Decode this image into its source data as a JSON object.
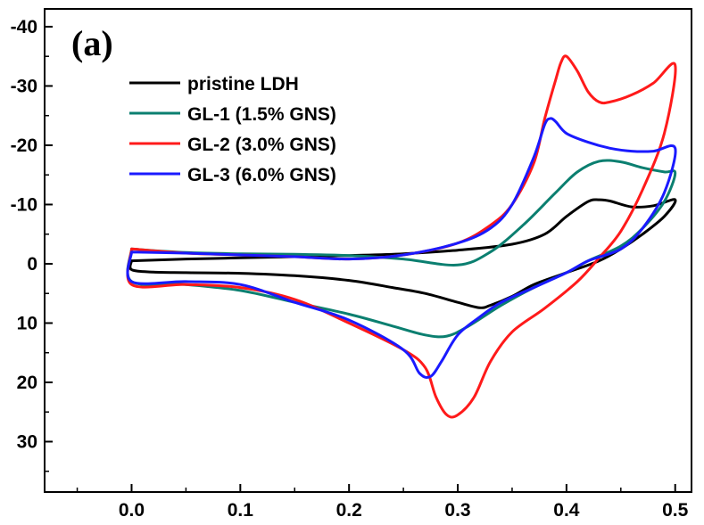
{
  "chart_data": {
    "type": "line",
    "panel_label": "(a)",
    "title": "",
    "xlabel": "",
    "ylabel": "",
    "xlim": [
      -0.08,
      0.515
    ],
    "ylim": [
      -43,
      38.5
    ],
    "y_inverted": true,
    "x_ticks": [
      0.0,
      0.1,
      0.2,
      0.3,
      0.4,
      0.5
    ],
    "x_tick_labels": [
      "0.0",
      "0.1",
      "0.2",
      "0.3",
      "0.4",
      "0.5"
    ],
    "y_ticks": [
      -40,
      -30,
      -20,
      -10,
      0,
      10,
      20,
      30
    ],
    "y_tick_labels": [
      "-40",
      "-30",
      "-20",
      "-10",
      "0",
      "10",
      "20",
      "30"
    ],
    "grid": false,
    "legend_position": "top-left",
    "series": [
      {
        "name": "pristine LDH",
        "color": "#000000",
        "points": [
          [
            0.0,
            -0.5
          ],
          [
            0.05,
            -0.8
          ],
          [
            0.1,
            -1.0
          ],
          [
            0.15,
            -1.2
          ],
          [
            0.2,
            -1.4
          ],
          [
            0.25,
            -1.7
          ],
          [
            0.3,
            -2.3
          ],
          [
            0.35,
            -3.3
          ],
          [
            0.38,
            -5.0
          ],
          [
            0.4,
            -8.0
          ],
          [
            0.42,
            -10.5
          ],
          [
            0.43,
            -10.8
          ],
          [
            0.44,
            -10.6
          ],
          [
            0.46,
            -9.6
          ],
          [
            0.48,
            -9.8
          ],
          [
            0.5,
            -10.8
          ],
          [
            0.49,
            -8.0
          ],
          [
            0.47,
            -5.0
          ],
          [
            0.45,
            -2.5
          ],
          [
            0.43,
            -0.5
          ],
          [
            0.4,
            1.5
          ],
          [
            0.37,
            3.5
          ],
          [
            0.35,
            5.5
          ],
          [
            0.33,
            7.0
          ],
          [
            0.32,
            7.4
          ],
          [
            0.3,
            6.5
          ],
          [
            0.27,
            5.0
          ],
          [
            0.24,
            4.0
          ],
          [
            0.2,
            2.8
          ],
          [
            0.15,
            2.0
          ],
          [
            0.1,
            1.6
          ],
          [
            0.05,
            1.5
          ],
          [
            0.02,
            1.4
          ],
          [
            0.0,
            1.0
          ]
        ]
      },
      {
        "name": "GL-1 (1.5% GNS)",
        "color": "#0b7f70",
        "points": [
          [
            0.0,
            -2.5
          ],
          [
            0.05,
            -1.9
          ],
          [
            0.1,
            -1.7
          ],
          [
            0.15,
            -1.6
          ],
          [
            0.2,
            -1.4
          ],
          [
            0.25,
            -0.8
          ],
          [
            0.3,
            0.2
          ],
          [
            0.33,
            -2.0
          ],
          [
            0.36,
            -6.5
          ],
          [
            0.39,
            -12.0
          ],
          [
            0.41,
            -15.5
          ],
          [
            0.43,
            -17.3
          ],
          [
            0.45,
            -17.2
          ],
          [
            0.47,
            -16.2
          ],
          [
            0.49,
            -15.5
          ],
          [
            0.5,
            -15.3
          ],
          [
            0.49,
            -10.5
          ],
          [
            0.47,
            -6.0
          ],
          [
            0.45,
            -3.0
          ],
          [
            0.42,
            -0.5
          ],
          [
            0.4,
            1.5
          ],
          [
            0.37,
            4.0
          ],
          [
            0.34,
            7.0
          ],
          [
            0.31,
            10.5
          ],
          [
            0.29,
            12.2
          ],
          [
            0.27,
            12.0
          ],
          [
            0.24,
            10.5
          ],
          [
            0.2,
            8.5
          ],
          [
            0.15,
            6.5
          ],
          [
            0.1,
            4.5
          ],
          [
            0.05,
            3.5
          ],
          [
            0.0,
            3.0
          ]
        ]
      },
      {
        "name": "GL-2 (3.0% GNS)",
        "color": "#ff1a1a",
        "points": [
          [
            0.0,
            -2.5
          ],
          [
            0.05,
            -1.8
          ],
          [
            0.1,
            -1.5
          ],
          [
            0.15,
            -1.2
          ],
          [
            0.2,
            -0.8
          ],
          [
            0.25,
            -1.5
          ],
          [
            0.3,
            -3.5
          ],
          [
            0.33,
            -6.5
          ],
          [
            0.35,
            -10.0
          ],
          [
            0.37,
            -17.0
          ],
          [
            0.38,
            -24.5
          ],
          [
            0.39,
            -31.0
          ],
          [
            0.395,
            -34.0
          ],
          [
            0.4,
            -35.0
          ],
          [
            0.41,
            -32.5
          ],
          [
            0.42,
            -29.0
          ],
          [
            0.43,
            -27.3
          ],
          [
            0.44,
            -27.3
          ],
          [
            0.46,
            -28.5
          ],
          [
            0.48,
            -30.5
          ],
          [
            0.5,
            -33.5
          ],
          [
            0.49,
            -22.0
          ],
          [
            0.47,
            -12.5
          ],
          [
            0.45,
            -5.5
          ],
          [
            0.43,
            -1.0
          ],
          [
            0.41,
            3.0
          ],
          [
            0.38,
            7.5
          ],
          [
            0.35,
            11.5
          ],
          [
            0.33,
            16.5
          ],
          [
            0.315,
            22.5
          ],
          [
            0.3,
            25.5
          ],
          [
            0.29,
            25.5
          ],
          [
            0.28,
            22.5
          ],
          [
            0.27,
            17.5
          ],
          [
            0.25,
            14.5
          ],
          [
            0.2,
            10.0
          ],
          [
            0.15,
            6.0
          ],
          [
            0.1,
            4.0
          ],
          [
            0.05,
            3.5
          ],
          [
            0.0,
            3.5
          ]
        ]
      },
      {
        "name": "GL-3 (6.0% GNS)",
        "color": "#1a1aff",
        "points": [
          [
            0.0,
            -2.0
          ],
          [
            0.05,
            -1.8
          ],
          [
            0.1,
            -1.5
          ],
          [
            0.15,
            -1.2
          ],
          [
            0.2,
            -0.8
          ],
          [
            0.25,
            -1.5
          ],
          [
            0.3,
            -3.5
          ],
          [
            0.33,
            -6.0
          ],
          [
            0.35,
            -10.0
          ],
          [
            0.37,
            -18.0
          ],
          [
            0.38,
            -23.5
          ],
          [
            0.385,
            -24.5
          ],
          [
            0.39,
            -24.0
          ],
          [
            0.4,
            -22.0
          ],
          [
            0.42,
            -20.5
          ],
          [
            0.44,
            -19.5
          ],
          [
            0.46,
            -19.0
          ],
          [
            0.48,
            -19.0
          ],
          [
            0.5,
            -19.5
          ],
          [
            0.49,
            -12.0
          ],
          [
            0.47,
            -6.0
          ],
          [
            0.45,
            -2.5
          ],
          [
            0.42,
            -0.5
          ],
          [
            0.4,
            1.5
          ],
          [
            0.37,
            4.0
          ],
          [
            0.34,
            6.5
          ],
          [
            0.32,
            9.0
          ],
          [
            0.3,
            12.0
          ],
          [
            0.285,
            16.5
          ],
          [
            0.275,
            19.0
          ],
          [
            0.265,
            18.5
          ],
          [
            0.25,
            14.5
          ],
          [
            0.2,
            9.5
          ],
          [
            0.15,
            6.5
          ],
          [
            0.1,
            3.5
          ],
          [
            0.05,
            3.0
          ],
          [
            0.0,
            3.0
          ]
        ]
      }
    ]
  }
}
